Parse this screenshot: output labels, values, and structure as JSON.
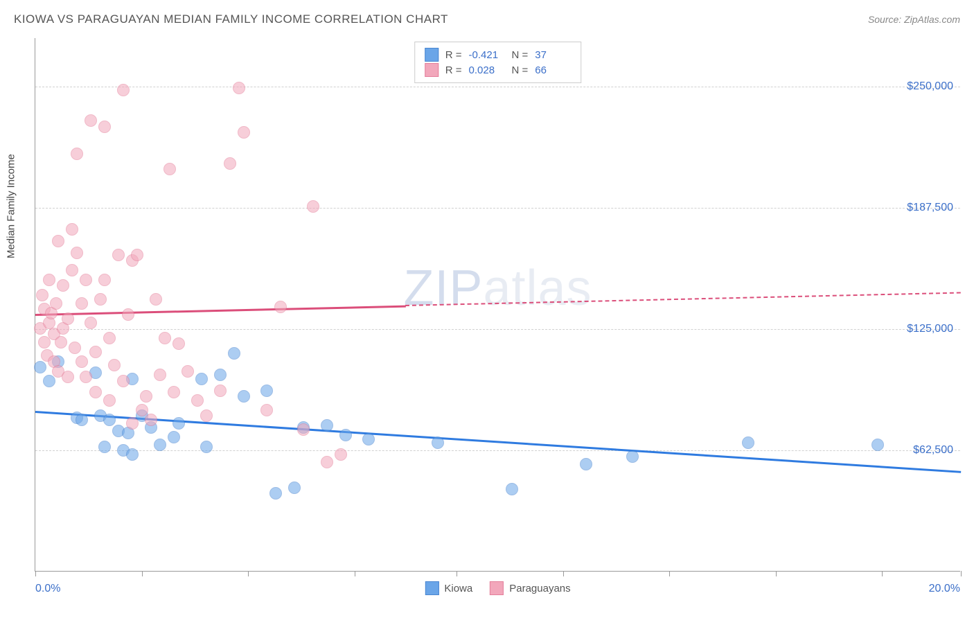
{
  "title": "KIOWA VS PARAGUAYAN MEDIAN FAMILY INCOME CORRELATION CHART",
  "source": "Source: ZipAtlas.com",
  "watermark_a": "ZIP",
  "watermark_b": "atlas",
  "chart": {
    "type": "scatter",
    "yaxis_title": "Median Family Income",
    "background_color": "#ffffff",
    "grid_color": "#d0d0d0",
    "axis_color": "#999999",
    "tick_label_color": "#3b6fc9",
    "xlim": [
      0,
      20
    ],
    "ylim": [
      0,
      275000
    ],
    "yticks": [
      {
        "value": 62500,
        "label": "$62,500"
      },
      {
        "value": 125000,
        "label": "$125,000"
      },
      {
        "value": 187500,
        "label": "$187,500"
      },
      {
        "value": 250000,
        "label": "$250,000"
      }
    ],
    "xticks": [
      0,
      2.3,
      4.6,
      6.9,
      9.1,
      11.4,
      13.7,
      16.0,
      18.3,
      20.0
    ],
    "xtick_labels": {
      "left": "0.0%",
      "right": "20.0%"
    },
    "marker_radius": 9,
    "marker_opacity": 0.55,
    "series": [
      {
        "name": "Kiowa",
        "color": "#6aa5e8",
        "border": "#4a86d1",
        "R": "-0.421",
        "N": "37",
        "trend": {
          "x0": 0,
          "y0": 83000,
          "x1": 20,
          "y1": 52000,
          "solid_until_x": 20,
          "color": "#2f7be0"
        },
        "points": [
          [
            0.1,
            105000
          ],
          [
            0.3,
            98000
          ],
          [
            0.5,
            108000
          ],
          [
            0.9,
            79000
          ],
          [
            1.0,
            78000
          ],
          [
            1.3,
            102000
          ],
          [
            1.4,
            80000
          ],
          [
            1.5,
            64000
          ],
          [
            1.6,
            78000
          ],
          [
            1.8,
            72000
          ],
          [
            1.9,
            62000
          ],
          [
            2.0,
            71000
          ],
          [
            2.1,
            99000
          ],
          [
            2.1,
            60000
          ],
          [
            2.3,
            80000
          ],
          [
            2.5,
            74000
          ],
          [
            2.7,
            65000
          ],
          [
            3.0,
            69000
          ],
          [
            3.1,
            76000
          ],
          [
            3.6,
            99000
          ],
          [
            3.7,
            64000
          ],
          [
            4.0,
            101000
          ],
          [
            4.3,
            112000
          ],
          [
            4.5,
            90000
          ],
          [
            5.0,
            93000
          ],
          [
            5.2,
            40000
          ],
          [
            5.6,
            43000
          ],
          [
            5.8,
            74000
          ],
          [
            6.3,
            75000
          ],
          [
            6.7,
            70000
          ],
          [
            7.2,
            68000
          ],
          [
            8.7,
            66000
          ],
          [
            10.3,
            42000
          ],
          [
            11.9,
            55000
          ],
          [
            12.9,
            59000
          ],
          [
            15.4,
            66000
          ],
          [
            18.2,
            65000
          ]
        ]
      },
      {
        "name": "Paraguayans",
        "color": "#f2a7bb",
        "border": "#e47f9b",
        "R": "0.028",
        "N": "66",
        "trend": {
          "x0": 0,
          "y0": 133000,
          "x1": 20,
          "y1": 144000,
          "solid_until_x": 8.0,
          "color": "#db4e7a"
        },
        "points": [
          [
            0.1,
            125000
          ],
          [
            0.15,
            142000
          ],
          [
            0.2,
            118000
          ],
          [
            0.2,
            135000
          ],
          [
            0.25,
            111000
          ],
          [
            0.3,
            150000
          ],
          [
            0.3,
            128000
          ],
          [
            0.35,
            133000
          ],
          [
            0.4,
            122000
          ],
          [
            0.4,
            108000
          ],
          [
            0.45,
            138000
          ],
          [
            0.5,
            170000
          ],
          [
            0.5,
            103000
          ],
          [
            0.55,
            118000
          ],
          [
            0.6,
            147000
          ],
          [
            0.6,
            125000
          ],
          [
            0.7,
            130000
          ],
          [
            0.7,
            100000
          ],
          [
            0.8,
            155000
          ],
          [
            0.8,
            176000
          ],
          [
            0.85,
            115000
          ],
          [
            0.9,
            164000
          ],
          [
            0.9,
            215000
          ],
          [
            1.0,
            138000
          ],
          [
            1.0,
            108000
          ],
          [
            1.1,
            150000
          ],
          [
            1.1,
            100000
          ],
          [
            1.2,
            128000
          ],
          [
            1.2,
            232000
          ],
          [
            1.3,
            113000
          ],
          [
            1.3,
            92000
          ],
          [
            1.4,
            140000
          ],
          [
            1.5,
            229000
          ],
          [
            1.5,
            150000
          ],
          [
            1.6,
            120000
          ],
          [
            1.6,
            88000
          ],
          [
            1.7,
            106000
          ],
          [
            1.8,
            163000
          ],
          [
            1.9,
            248000
          ],
          [
            1.9,
            98000
          ],
          [
            2.0,
            132000
          ],
          [
            2.1,
            160000
          ],
          [
            2.1,
            76000
          ],
          [
            2.2,
            163000
          ],
          [
            2.3,
            83000
          ],
          [
            2.4,
            90000
          ],
          [
            2.5,
            78000
          ],
          [
            2.6,
            140000
          ],
          [
            2.7,
            101000
          ],
          [
            2.8,
            120000
          ],
          [
            2.9,
            207000
          ],
          [
            3.0,
            92000
          ],
          [
            3.1,
            117000
          ],
          [
            3.3,
            103000
          ],
          [
            3.5,
            88000
          ],
          [
            3.7,
            80000
          ],
          [
            4.0,
            93000
          ],
          [
            4.2,
            210000
          ],
          [
            4.4,
            249000
          ],
          [
            4.5,
            226000
          ],
          [
            5.0,
            83000
          ],
          [
            5.3,
            136000
          ],
          [
            5.8,
            73000
          ],
          [
            6.0,
            188000
          ],
          [
            6.3,
            56000
          ],
          [
            6.6,
            60000
          ]
        ]
      }
    ]
  },
  "legend_top": {
    "R_label": "R =",
    "N_label": "N ="
  },
  "legend_bottom": [
    {
      "label": "Kiowa",
      "color": "#6aa5e8",
      "border": "#4a86d1"
    },
    {
      "label": "Paraguayans",
      "color": "#f2a7bb",
      "border": "#e47f9b"
    }
  ]
}
